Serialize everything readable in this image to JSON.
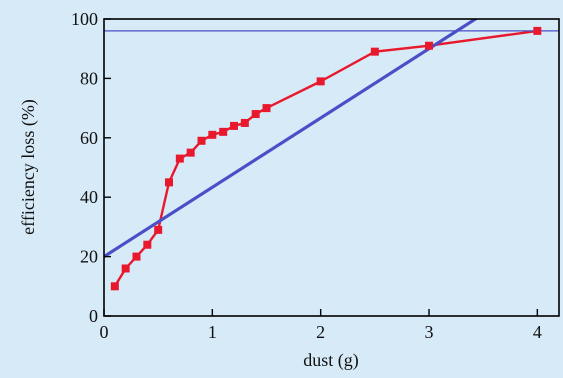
{
  "chart_data": {
    "type": "line",
    "title": "",
    "xlabel": "dust (g)",
    "ylabel": "efficiency loss (%)",
    "xlim": [
      0,
      4.2
    ],
    "ylim": [
      0,
      100
    ],
    "x_ticks": [
      0,
      1,
      2,
      3,
      4
    ],
    "y_ticks": [
      0,
      20,
      40,
      60,
      80,
      100
    ],
    "x_tick_labels": [
      "0",
      "1",
      "2",
      "3",
      "4"
    ],
    "y_tick_labels": [
      "0",
      "20",
      "40",
      "60",
      "80",
      "100"
    ],
    "grid": false,
    "colors": {
      "plot_background": "#d7eaf8",
      "outer_background": "#d7eaf8",
      "data_series": "#e8192c",
      "fit_line": "#4a4fc8",
      "reference_line": "#4a4fc8",
      "axes": "#000000"
    },
    "series": [
      {
        "marker": "square",
        "x": [
          0.1,
          0.2,
          0.3,
          0.4,
          0.5,
          0.6,
          0.7,
          0.8,
          0.9,
          1.0,
          1.1,
          1.2,
          1.3,
          1.4,
          1.5,
          2.0,
          2.5,
          3.0,
          4.0
        ],
        "y": [
          10,
          16,
          20,
          24,
          29,
          45,
          53,
          55,
          59,
          61,
          62,
          64,
          65,
          68,
          70,
          79,
          89,
          91,
          96
        ]
      },
      {
        "style": "fit-line",
        "x": [
          0,
          3.6
        ],
        "y": [
          20,
          104
        ]
      },
      {
        "style": "reference-line",
        "x": [
          0,
          4.2
        ],
        "y": [
          96,
          96
        ]
      }
    ]
  }
}
